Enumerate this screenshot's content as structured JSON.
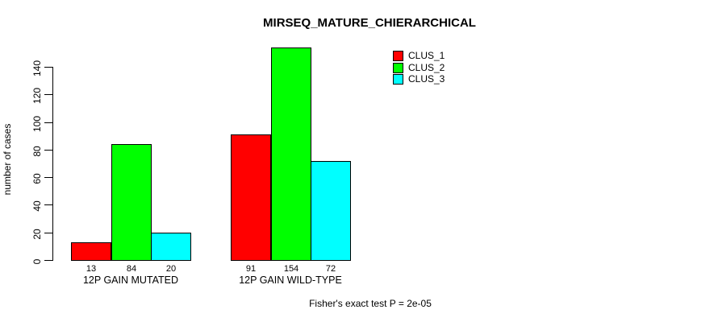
{
  "title": "MIRSEQ_MATURE_CHIERARCHICAL",
  "annotation": "Fisher's exact test P = 2e-05",
  "chart_data": {
    "type": "bar",
    "title": "MIRSEQ_MATURE_CHIERARCHICAL",
    "xlabel": "",
    "ylabel": "number of cases",
    "categories": [
      "12P GAIN MUTATED",
      "12P GAIN WILD-TYPE"
    ],
    "series": [
      {
        "name": "CLUS_1",
        "color": "#ff0000",
        "values": [
          13,
          91
        ]
      },
      {
        "name": "CLUS_2",
        "color": "#00ff00",
        "values": [
          84,
          154
        ]
      },
      {
        "name": "CLUS_3",
        "color": "#00ffff",
        "values": [
          20,
          72
        ]
      }
    ],
    "yticks": [
      0,
      20,
      40,
      60,
      80,
      100,
      120,
      140
    ],
    "ylim": [
      0,
      154
    ],
    "grid": false,
    "bar_value_labels": true,
    "legend_position": "top-right",
    "legend_entries": [
      "CLUS_1",
      "CLUS_2",
      "CLUS_3"
    ],
    "annotation": "Fisher's exact test P = 2e-05"
  }
}
